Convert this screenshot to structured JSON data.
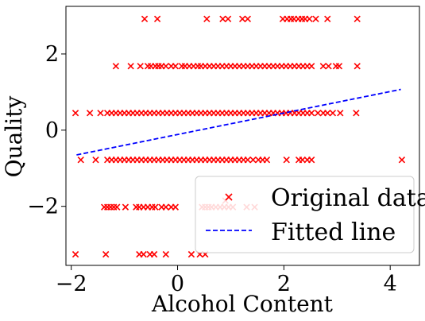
{
  "chart_data": {
    "type": "scatter",
    "xlabel": "Alcohol Content",
    "ylabel": "Quality",
    "xlim": [
      -2.1,
      4.55
    ],
    "ylim": [
      -3.55,
      3.25
    ],
    "x_ticks": [
      {
        "value": -2,
        "label": "−2"
      },
      {
        "value": 0,
        "label": "0"
      },
      {
        "value": 2,
        "label": "2"
      },
      {
        "value": 4,
        "label": "4"
      }
    ],
    "y_ticks": [
      {
        "value": -2,
        "label": "−2"
      },
      {
        "value": 0,
        "label": "0"
      },
      {
        "value": 2,
        "label": "2"
      }
    ],
    "grid": false,
    "legend_position": "bottom-right",
    "colors": {
      "points": "#ff0000",
      "line": "#0000ff",
      "axes": "#000000"
    },
    "series": [
      {
        "name": "Original data",
        "marker": "x",
        "color": "#ff0000",
        "x_levels": {
          "2.92": [
            -0.62,
            -0.38,
            0.55,
            0.85,
            0.95,
            1.22,
            1.32,
            1.98,
            2.06,
            2.13,
            2.19,
            2.27,
            2.34,
            2.4,
            2.48,
            2.6,
            2.82,
            3.38
          ],
          "1.68": [
            -1.16,
            -0.88,
            -0.7,
            -0.56,
            -0.5,
            -0.42,
            -0.36,
            -0.3,
            -0.22,
            -0.12,
            -0.04,
            0.08,
            0.14,
            0.22,
            0.3,
            0.38,
            0.44,
            0.52,
            0.6,
            0.68,
            0.76,
            0.84,
            0.92,
            1.0,
            1.08,
            1.16,
            1.24,
            1.32,
            1.4,
            1.48,
            1.56,
            1.64,
            1.72,
            1.8,
            1.88,
            1.96,
            2.04,
            2.12,
            2.2,
            2.28,
            2.36,
            2.44,
            2.52,
            2.74,
            2.84,
            2.98,
            3.04,
            3.38
          ],
          "0.45": [
            -1.92,
            -1.65,
            -1.45,
            -1.32,
            -1.24,
            -1.16,
            -1.08,
            -1.0,
            -0.92,
            -0.84,
            -0.76,
            -0.68,
            -0.6,
            -0.52,
            -0.44,
            -0.36,
            -0.28,
            -0.2,
            -0.12,
            -0.04,
            0.04,
            0.12,
            0.2,
            0.28,
            0.36,
            0.44,
            0.52,
            0.6,
            0.68,
            0.76,
            0.84,
            0.92,
            1.0,
            1.08,
            1.16,
            1.24,
            1.32,
            1.4,
            1.48,
            1.56,
            1.64,
            1.72,
            1.8,
            1.88,
            1.96,
            2.04,
            2.12,
            2.2,
            2.28,
            2.36,
            2.44,
            2.52,
            2.64,
            2.74,
            2.82,
            2.92,
            3.06,
            3.36
          ],
          "-0.78": [
            -1.82,
            -1.54,
            -1.32,
            -1.24,
            -1.16,
            -1.08,
            -1.0,
            -0.92,
            -0.84,
            -0.76,
            -0.68,
            -0.6,
            -0.52,
            -0.44,
            -0.36,
            -0.28,
            -0.2,
            -0.12,
            -0.04,
            0.04,
            0.12,
            0.2,
            0.28,
            0.36,
            0.44,
            0.52,
            0.6,
            0.68,
            0.76,
            0.84,
            0.92,
            1.0,
            1.08,
            1.16,
            1.24,
            1.32,
            1.42,
            1.52,
            1.6,
            1.68,
            2.05,
            2.28,
            2.35,
            2.44,
            2.52,
            4.22
          ],
          "-2.02": [
            -1.38,
            -1.32,
            -1.26,
            -1.2,
            -1.14,
            -0.98,
            -0.78,
            -0.72,
            -0.64,
            -0.56,
            -0.48,
            -0.42,
            -0.3,
            -0.22,
            -0.12,
            -0.04,
            0.46,
            0.52,
            0.58,
            0.64,
            0.72,
            0.8,
            0.88,
            0.96,
            1.04,
            1.3,
            1.45
          ],
          "-3.26": [
            -1.92,
            -1.35,
            -0.72,
            -0.64,
            -0.52,
            -0.44,
            -0.22,
            0.26,
            0.42,
            0.52
          ]
        },
        "extra_points": [
          [
            0.9,
            -1.85
          ]
        ]
      },
      {
        "name": "Fitted line",
        "style": "dashed",
        "color": "#0000ff",
        "x": [
          -1.9,
          4.2
        ],
        "y": [
          -0.65,
          1.07
        ]
      }
    ]
  }
}
